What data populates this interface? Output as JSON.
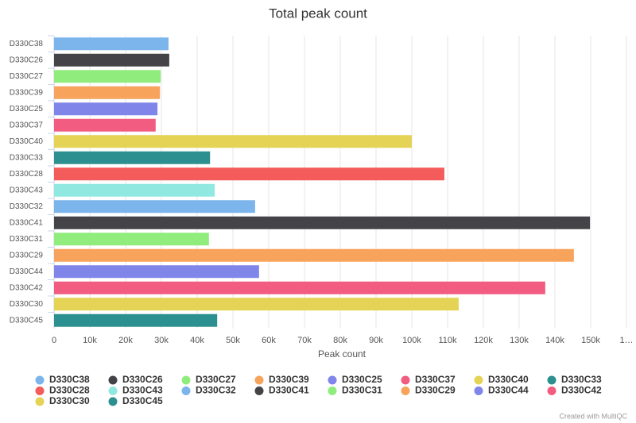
{
  "chart_data": {
    "type": "bar",
    "orientation": "horizontal",
    "title": "Total peak count",
    "x_label": "Peak count",
    "categories": [
      "D330C38",
      "D330C26",
      "D330C27",
      "D330C39",
      "D330C25",
      "D330C37",
      "D330C40",
      "D330C33",
      "D330C28",
      "D330C43",
      "D330C32",
      "D330C41",
      "D330C31",
      "D330C29",
      "D330C44",
      "D330C42",
      "D330C30",
      "D330C45"
    ],
    "values": [
      32000,
      32200,
      29800,
      29600,
      28900,
      28400,
      100000,
      43600,
      109100,
      44900,
      56200,
      149800,
      43300,
      145300,
      57300,
      137300,
      113100,
      45600
    ],
    "colors": [
      "#7cb5ec",
      "#434348",
      "#90ed7d",
      "#f7a35c",
      "#8085e9",
      "#f15c80",
      "#e4d354",
      "#2b908f",
      "#f45b5b",
      "#91e8e1",
      "#7cb5ec",
      "#434348",
      "#90ed7d",
      "#f7a35c",
      "#8085e9",
      "#f15c80",
      "#e4d354",
      "#2b908f"
    ],
    "xlim": [
      0,
      160000
    ],
    "xticks": [
      0,
      {
        "value": 10000,
        "label": "10k"
      },
      {
        "value": 20000,
        "label": "20k"
      },
      {
        "value": 30000,
        "label": "30k"
      },
      {
        "value": 40000,
        "label": "40k"
      },
      {
        "value": 50000,
        "label": "50k"
      },
      {
        "value": 60000,
        "label": "60k"
      },
      {
        "value": 70000,
        "label": "70k"
      },
      {
        "value": 80000,
        "label": "80k"
      },
      {
        "value": 90000,
        "label": "90k"
      },
      {
        "value": 100000,
        "label": "100k"
      },
      {
        "value": 110000,
        "label": "110k"
      },
      {
        "value": 120000,
        "label": "120k"
      },
      {
        "value": 130000,
        "label": "130k"
      },
      {
        "value": 140000,
        "label": "140k"
      },
      {
        "value": 150000,
        "label": "150k"
      },
      {
        "value": 160000,
        "label": "1…"
      }
    ],
    "grid": true
  },
  "credit": "Created with MultiQC"
}
